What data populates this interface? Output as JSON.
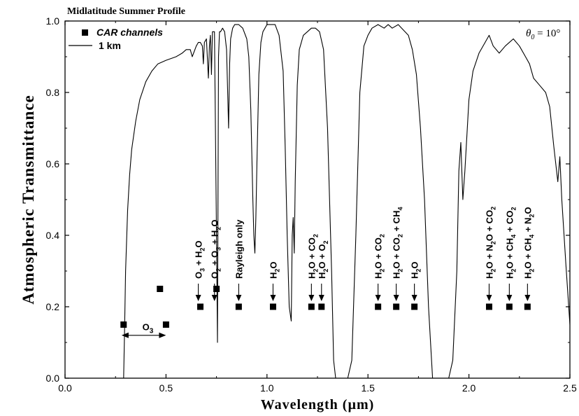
{
  "chart_data": {
    "type": "line",
    "title": "Midlatitude Summer Profile",
    "xlabel": "Wavelength  (µm)",
    "ylabel": "Atmospheric  Transmittance",
    "angle_label": "θ",
    "angle_sub": "0",
    "angle_value": " = 10°",
    "xlim": [
      0.0,
      2.5
    ],
    "ylim": [
      0.0,
      1.0
    ],
    "xticks": [
      "0.0",
      "0.5",
      "1.0",
      "1.5",
      "2.0",
      "2.5"
    ],
    "yticks": [
      "0.0",
      "0.2",
      "0.4",
      "0.6",
      "0.8",
      "1.0"
    ],
    "legend_position": "top-left",
    "legend": [
      {
        "name": "CAR  channels",
        "kind": "marker"
      },
      {
        "name": "1 km",
        "kind": "line"
      }
    ],
    "transmittance": {
      "x": [
        0.29,
        0.295,
        0.3,
        0.31,
        0.32,
        0.33,
        0.35,
        0.37,
        0.4,
        0.43,
        0.46,
        0.5,
        0.55,
        0.58,
        0.6,
        0.62,
        0.63,
        0.65,
        0.66,
        0.67,
        0.68,
        0.685,
        0.69,
        0.7,
        0.71,
        0.715,
        0.72,
        0.725,
        0.73,
        0.74,
        0.75,
        0.755,
        0.76,
        0.765,
        0.77,
        0.78,
        0.79,
        0.8,
        0.81,
        0.815,
        0.82,
        0.83,
        0.84,
        0.86,
        0.88,
        0.9,
        0.91,
        0.92,
        0.93,
        0.935,
        0.94,
        0.945,
        0.95,
        0.96,
        0.97,
        0.98,
        1.0,
        1.02,
        1.04,
        1.06,
        1.08,
        1.09,
        1.1,
        1.11,
        1.12,
        1.125,
        1.13,
        1.135,
        1.14,
        1.15,
        1.16,
        1.18,
        1.2,
        1.22,
        1.24,
        1.26,
        1.28,
        1.3,
        1.32,
        1.33,
        1.34,
        1.36,
        1.38,
        1.4,
        1.42,
        1.44,
        1.46,
        1.48,
        1.5,
        1.52,
        1.55,
        1.58,
        1.6,
        1.62,
        1.65,
        1.7,
        1.72,
        1.74,
        1.76,
        1.78,
        1.8,
        1.82,
        1.84,
        1.86,
        1.88,
        1.9,
        1.92,
        1.94,
        1.95,
        1.96,
        1.97,
        1.98,
        2.0,
        2.02,
        2.05,
        2.08,
        2.1,
        2.12,
        2.15,
        2.18,
        2.2,
        2.22,
        2.25,
        2.28,
        2.3,
        2.32,
        2.35,
        2.38,
        2.4,
        2.42,
        2.44,
        2.45,
        2.46,
        2.48,
        2.5
      ],
      "y": [
        0.0,
        0.14,
        0.3,
        0.47,
        0.57,
        0.64,
        0.72,
        0.78,
        0.83,
        0.86,
        0.88,
        0.89,
        0.9,
        0.91,
        0.92,
        0.92,
        0.9,
        0.93,
        0.94,
        0.94,
        0.93,
        0.88,
        0.94,
        0.95,
        0.84,
        0.93,
        0.96,
        0.85,
        0.97,
        0.97,
        0.4,
        0.1,
        0.9,
        0.97,
        0.97,
        0.98,
        0.97,
        0.92,
        0.7,
        0.88,
        0.95,
        0.98,
        0.99,
        0.99,
        0.98,
        0.95,
        0.9,
        0.75,
        0.5,
        0.4,
        0.35,
        0.45,
        0.6,
        0.85,
        0.94,
        0.97,
        0.99,
        0.99,
        0.99,
        0.96,
        0.86,
        0.65,
        0.4,
        0.2,
        0.16,
        0.4,
        0.45,
        0.35,
        0.55,
        0.82,
        0.92,
        0.96,
        0.97,
        0.98,
        0.98,
        0.97,
        0.92,
        0.7,
        0.3,
        0.05,
        0.0,
        0.0,
        0.0,
        0.0,
        0.05,
        0.4,
        0.8,
        0.93,
        0.96,
        0.98,
        0.99,
        0.98,
        0.99,
        0.98,
        0.99,
        0.96,
        0.92,
        0.85,
        0.7,
        0.5,
        0.2,
        0.0,
        0.0,
        0.0,
        0.0,
        0.0,
        0.05,
        0.3,
        0.58,
        0.66,
        0.5,
        0.58,
        0.78,
        0.86,
        0.91,
        0.94,
        0.96,
        0.93,
        0.91,
        0.93,
        0.94,
        0.95,
        0.93,
        0.9,
        0.88,
        0.84,
        0.82,
        0.8,
        0.76,
        0.65,
        0.55,
        0.62,
        0.5,
        0.32,
        0.15
      ]
    },
    "car_channels": {
      "x": [
        0.29,
        0.47,
        0.5,
        0.75,
        0.67,
        0.86,
        1.03,
        1.22,
        1.27,
        1.55,
        1.64,
        1.73,
        2.1,
        2.2,
        2.29
      ],
      "y": [
        0.15,
        0.25,
        0.15,
        0.25,
        0.2,
        0.2,
        0.2,
        0.2,
        0.2,
        0.2,
        0.2,
        0.2,
        0.2,
        0.2,
        0.2
      ]
    },
    "o3_label": "O",
    "o3_sub": "3",
    "annotations": [
      {
        "x": 0.66,
        "parts": [
          [
            "O",
            "n"
          ],
          [
            "3",
            "s"
          ],
          [
            " + H",
            "n"
          ],
          [
            "2",
            "s"
          ],
          [
            "O",
            "n"
          ]
        ]
      },
      {
        "x": 0.74,
        "parts": [
          [
            "O",
            "n"
          ],
          [
            "2",
            "s"
          ],
          [
            " + O",
            "n"
          ],
          [
            "3",
            "s"
          ],
          [
            " + H",
            "n"
          ],
          [
            "2",
            "s"
          ],
          [
            "O",
            "n"
          ]
        ]
      },
      {
        "x": 0.86,
        "parts": [
          [
            "Rayleigh   only",
            "n"
          ]
        ]
      },
      {
        "x": 1.03,
        "parts": [
          [
            "H",
            "n"
          ],
          [
            "2",
            "s"
          ],
          [
            "O",
            "n"
          ]
        ]
      },
      {
        "x": 1.22,
        "parts": [
          [
            "H",
            "n"
          ],
          [
            "2",
            "s"
          ],
          [
            "O + CO",
            "n"
          ],
          [
            "2",
            "s"
          ]
        ]
      },
      {
        "x": 1.27,
        "parts": [
          [
            "H",
            "n"
          ],
          [
            "2",
            "s"
          ],
          [
            "O + O",
            "n"
          ],
          [
            "2",
            "s"
          ]
        ]
      },
      {
        "x": 1.55,
        "parts": [
          [
            "H",
            "n"
          ],
          [
            "2",
            "s"
          ],
          [
            "O + CO",
            "n"
          ],
          [
            "2",
            "s"
          ]
        ]
      },
      {
        "x": 1.64,
        "parts": [
          [
            "H",
            "n"
          ],
          [
            "2",
            "s"
          ],
          [
            "O + CO",
            "n"
          ],
          [
            "2",
            "s"
          ],
          [
            " + CH",
            "n"
          ],
          [
            "4",
            "s"
          ]
        ]
      },
      {
        "x": 1.73,
        "parts": [
          [
            "H",
            "n"
          ],
          [
            "2",
            "s"
          ],
          [
            "O",
            "n"
          ]
        ]
      },
      {
        "x": 2.1,
        "parts": [
          [
            "H",
            "n"
          ],
          [
            "2",
            "s"
          ],
          [
            "O + N",
            "n"
          ],
          [
            "2",
            "s"
          ],
          [
            "O + CO",
            "n"
          ],
          [
            "2",
            "s"
          ]
        ]
      },
      {
        "x": 2.2,
        "parts": [
          [
            "H",
            "n"
          ],
          [
            "2",
            "s"
          ],
          [
            "O + CH",
            "n"
          ],
          [
            "4",
            "s"
          ],
          [
            " + CO",
            "n"
          ],
          [
            "2",
            "s"
          ]
        ]
      },
      {
        "x": 2.29,
        "parts": [
          [
            "H",
            "n"
          ],
          [
            "2",
            "s"
          ],
          [
            "O + CH",
            "n"
          ],
          [
            "4",
            "s"
          ],
          [
            " + N",
            "n"
          ],
          [
            "2",
            "s"
          ],
          [
            "O",
            "n"
          ]
        ]
      }
    ]
  }
}
